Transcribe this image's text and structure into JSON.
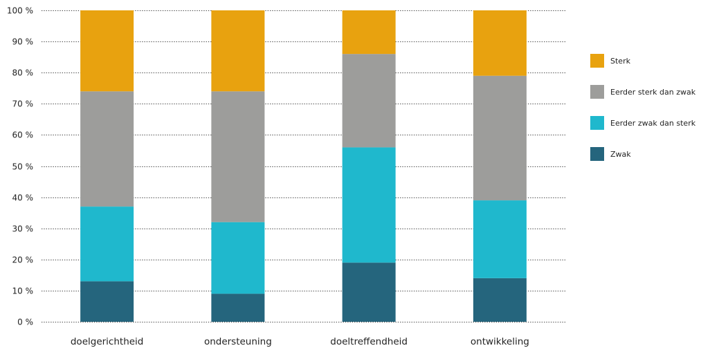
{
  "chart_data": {
    "type": "bar",
    "stacked": true,
    "categories": [
      "doelgerichtheid",
      "ondersteuning",
      "doeltreffendheid",
      "ontwikkeling"
    ],
    "series": [
      {
        "name": "Zwak",
        "color": "#25657d",
        "values": [
          13,
          9,
          19,
          14
        ]
      },
      {
        "name": "Eerder zwak dan sterk",
        "color": "#1fb8cd",
        "values": [
          24,
          23,
          37,
          25
        ]
      },
      {
        "name": "Eerder sterk dan zwak",
        "color": "#9d9d9b",
        "values": [
          37,
          42,
          30,
          40
        ]
      },
      {
        "name": "Sterk",
        "color": "#e8a20f",
        "values": [
          26,
          26,
          14,
          21
        ]
      }
    ],
    "y_ticks": [
      "0 %",
      "10 %",
      "20 %",
      "30 %",
      "40 %",
      "50 %",
      "60 %",
      "70 %",
      "80 %",
      "90 %",
      "100 %"
    ],
    "ylim": [
      0,
      100
    ],
    "grid": true,
    "legend_position": "right",
    "title": "",
    "xlabel": "",
    "ylabel": ""
  }
}
